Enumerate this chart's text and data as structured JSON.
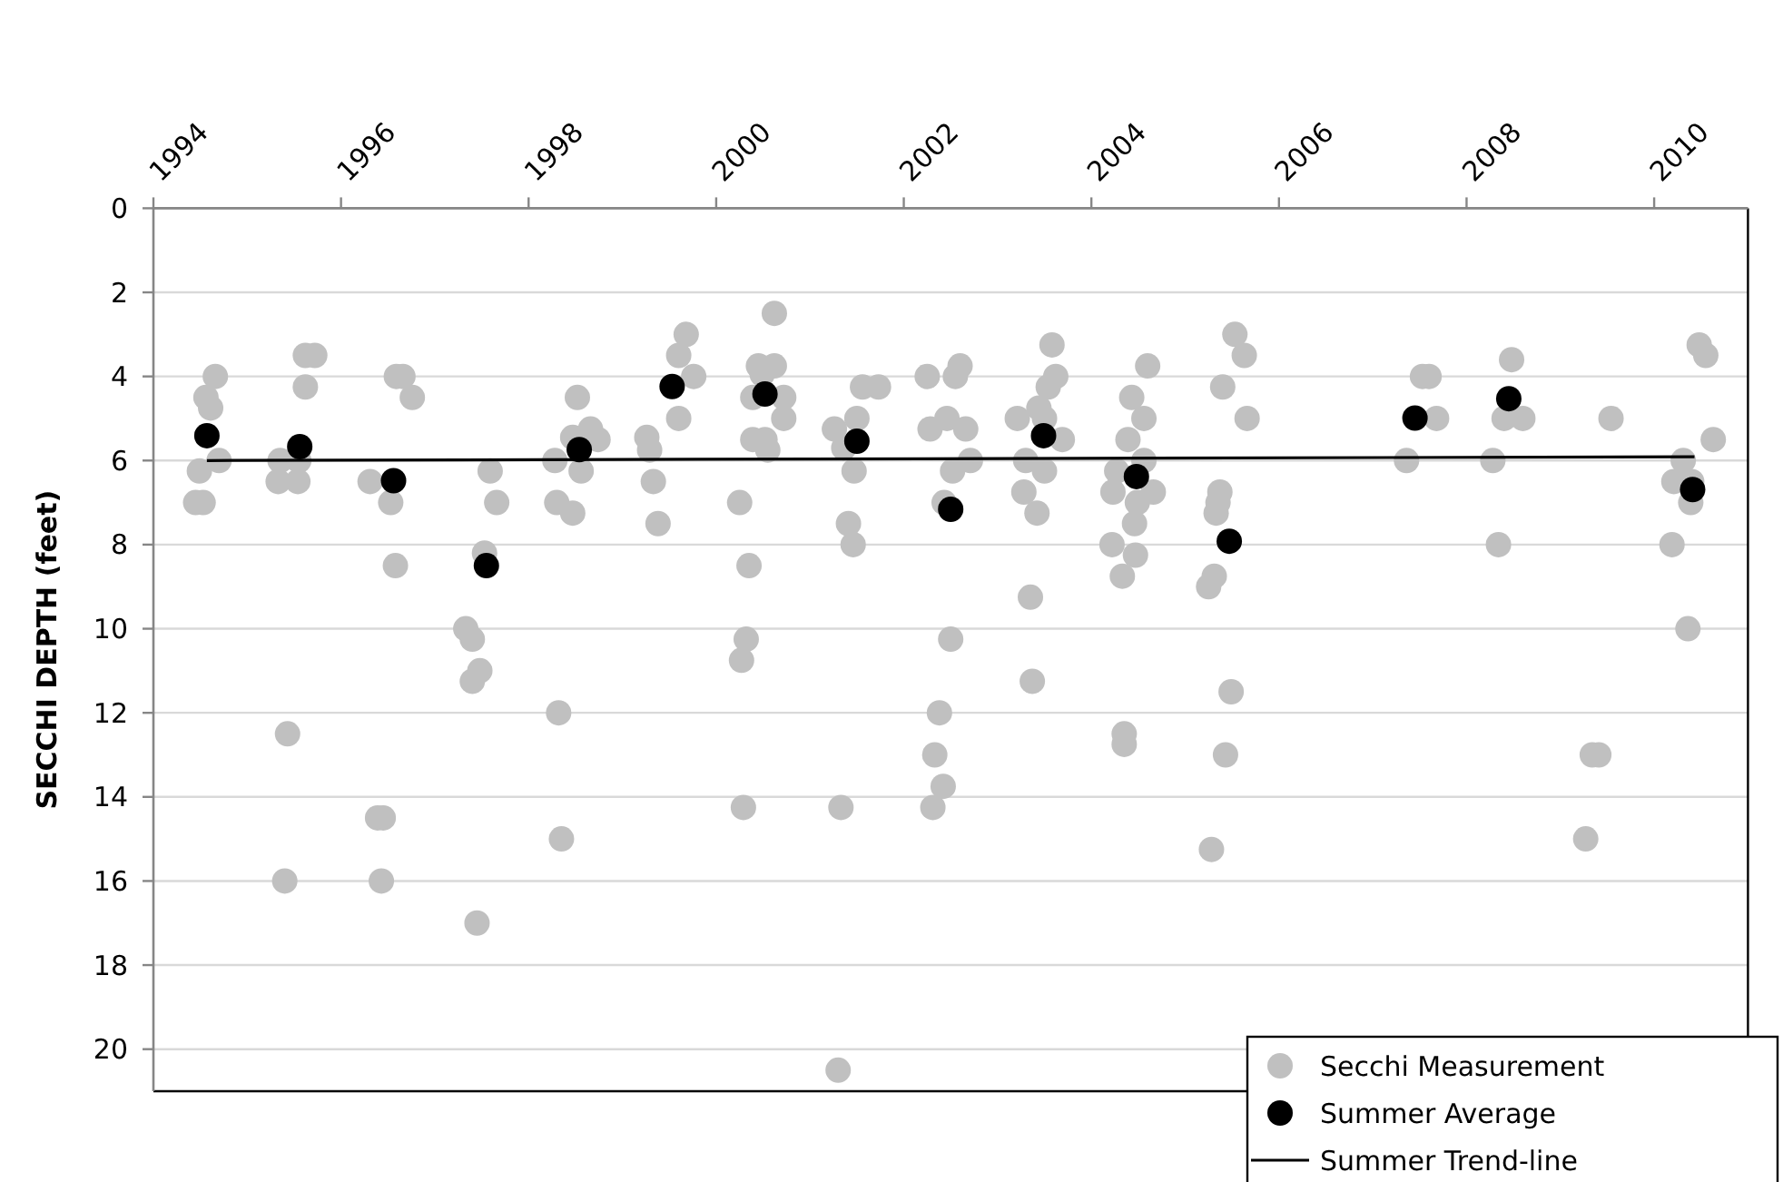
{
  "chart_data": {
    "type": "scatter",
    "ylabel": "SECCHI DEPTH (feet)",
    "xlim": [
      1994,
      2011
    ],
    "xticks": [
      1994,
      1996,
      1998,
      2000,
      2002,
      2004,
      2006,
      2008,
      2010
    ],
    "ylim": [
      21,
      0
    ],
    "yticks": [
      0,
      2,
      4,
      6,
      8,
      10,
      12,
      14,
      16,
      18,
      20
    ],
    "grid": "y",
    "legend": "bottom right",
    "marker": "circle",
    "series": [
      {
        "name": "Secchi Measurement",
        "color": "#c0c0c0",
        "x": [
          1994.66,
          1994.56,
          1994.61,
          1994.49,
          1994.7,
          1994.45,
          1994.53,
          1995.62,
          1995.72,
          1995.62,
          1995.35,
          1995.55,
          1995.33,
          1995.54,
          1995.43,
          1995.4,
          1996.66,
          1996.59,
          1996.76,
          1996.31,
          1996.53,
          1996.58,
          1996.39,
          1996.45,
          1996.43,
          1997.59,
          1997.66,
          1997.53,
          1997.33,
          1997.4,
          1997.48,
          1997.4,
          1997.45,
          1998.52,
          1998.47,
          1998.66,
          1998.74,
          1998.28,
          1998.56,
          1998.3,
          1998.47,
          1998.32,
          1998.35,
          1999.68,
          1999.6,
          1999.76,
          1999.6,
          1999.26,
          1999.29,
          1999.33,
          1999.38,
          2000.62,
          2000.45,
          2000.62,
          2000.49,
          2000.39,
          2000.72,
          2000.72,
          2000.39,
          2000.52,
          2000.55,
          2000.25,
          2000.35,
          2000.32,
          2000.27,
          2000.29,
          2001.26,
          2001.5,
          2001.36,
          2001.47,
          2001.41,
          2001.46,
          2001.33,
          2001.3,
          2001.56,
          2001.73,
          2002.25,
          2002.6,
          2002.55,
          2002.46,
          2002.28,
          2002.66,
          2002.71,
          2002.52,
          2002.43,
          2002.5,
          2002.38,
          2002.33,
          2002.42,
          2002.31,
          2003.58,
          2003.62,
          2003.54,
          2003.44,
          2003.21,
          2003.5,
          2003.69,
          2003.3,
          2003.5,
          2003.28,
          2003.42,
          2003.35,
          2003.37,
          2004.6,
          2004.43,
          2004.56,
          2004.39,
          2004.27,
          2004.56,
          2004.23,
          2004.66,
          2004.49,
          2004.46,
          2004.22,
          2004.47,
          2004.33,
          2004.35,
          2004.35,
          2005.53,
          2005.63,
          2005.4,
          2005.66,
          2005.37,
          2005.35,
          2005.33,
          2005.31,
          2005.25,
          2005.49,
          2005.43,
          2005.28,
          2007.53,
          2007.6,
          2007.68,
          2007.36,
          2008.48,
          2008.4,
          2008.6,
          2008.28,
          2008.34,
          2009.54,
          2009.34,
          2009.41,
          2009.27,
          2010.48,
          2010.55,
          2010.63,
          2010.31,
          2010.21,
          2010.4,
          2010.39,
          2010.19,
          2010.36
        ],
        "values": [
          4.0,
          4.5,
          4.75,
          6.25,
          6.0,
          7.0,
          7.0,
          3.5,
          3.5,
          4.25,
          6.0,
          6.0,
          6.5,
          6.5,
          12.5,
          16.0,
          4.0,
          4.0,
          4.5,
          6.5,
          7.0,
          8.5,
          14.5,
          14.5,
          16.0,
          6.25,
          7.0,
          8.2,
          10.0,
          10.25,
          11.0,
          11.25,
          17.0,
          4.5,
          5.45,
          5.25,
          5.5,
          6.0,
          6.25,
          7.0,
          7.25,
          12.0,
          15.0,
          3.0,
          3.5,
          4.0,
          5.0,
          5.45,
          5.75,
          6.5,
          7.5,
          2.5,
          3.75,
          3.75,
          3.95,
          4.5,
          4.5,
          5.0,
          5.5,
          5.5,
          5.75,
          7.0,
          8.5,
          10.25,
          10.75,
          14.25,
          5.25,
          5.0,
          5.7,
          6.25,
          7.5,
          8.0,
          14.25,
          20.5,
          4.25,
          4.25,
          4.0,
          3.75,
          4.0,
          5.0,
          5.25,
          5.25,
          6.0,
          6.25,
          7.0,
          10.25,
          12.0,
          13.0,
          13.75,
          14.25,
          3.25,
          4.0,
          4.25,
          4.75,
          5.0,
          5.0,
          5.5,
          6.0,
          6.25,
          6.75,
          7.25,
          9.25,
          11.25,
          3.75,
          4.5,
          5.0,
          5.5,
          6.25,
          6.0,
          6.75,
          6.75,
          7.0,
          7.5,
          8.0,
          8.25,
          8.75,
          12.5,
          12.75,
          3.0,
          3.5,
          4.25,
          5.0,
          6.75,
          7.0,
          7.25,
          8.75,
          9.0,
          11.5,
          13.0,
          15.25,
          4.0,
          4.0,
          5.0,
          6.0,
          3.6,
          5.0,
          5.0,
          6.0,
          8.0,
          5.0,
          13.0,
          13.0,
          15.0,
          3.25,
          3.5,
          5.5,
          6.0,
          6.5,
          6.5,
          7.0,
          8.0,
          10.0
        ]
      },
      {
        "name": "Summer Average",
        "color": "#000000",
        "x": [
          1994.57,
          1995.56,
          1996.56,
          1997.55,
          1998.54,
          1999.53,
          2000.52,
          2001.5,
          2002.5,
          2003.49,
          2004.48,
          2005.47,
          2007.45,
          2008.45,
          2010.41
        ],
        "values": [
          5.41,
          5.67,
          6.48,
          8.5,
          5.74,
          4.24,
          4.42,
          5.54,
          7.16,
          5.41,
          6.38,
          7.92,
          4.99,
          4.53,
          6.69
        ]
      },
      {
        "name": "Summer Trend-line",
        "type": "line",
        "color": "#000000",
        "marker": "none",
        "line_style": "solid",
        "x": [
          1994.57,
          2010.43
        ],
        "values": [
          6.0,
          5.91
        ]
      }
    ]
  }
}
